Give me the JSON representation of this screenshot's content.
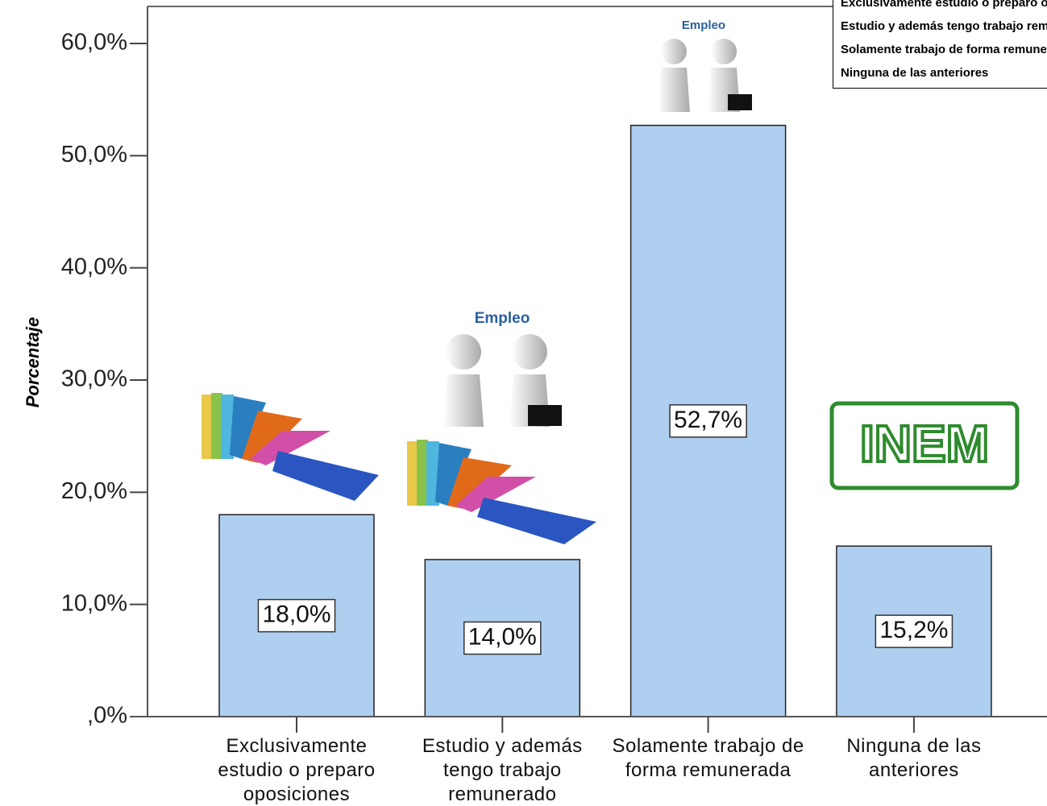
{
  "chart_data": {
    "type": "bar",
    "y_label": "Porcentaje",
    "categories": [
      "Exclusivamente estudio o preparo oposiciones",
      "Estudio y además tengo trabajo remunerado",
      "Solamente trabajo de forma remunerada",
      "Ninguna de las anteriores"
    ],
    "values": [
      18.0,
      14.0,
      52.7,
      15.2
    ],
    "value_labels": [
      "18,0%",
      "14,0%",
      "52,7%",
      "15,2%"
    ],
    "color": "#aecff0",
    "ylim": [
      0,
      63.3
    ],
    "yticks": [
      {
        "value": 0,
        "label": ",0%"
      },
      {
        "value": 10,
        "label": "10,0%"
      },
      {
        "value": 20,
        "label": "20,0%"
      },
      {
        "value": 30,
        "label": "30,0%"
      },
      {
        "value": 40,
        "label": "40,0%"
      },
      {
        "value": 50,
        "label": "50,0%"
      },
      {
        "value": 60,
        "label": "60,0%"
      }
    ],
    "annotations": [
      "Empleo",
      "Empleo",
      "INEM"
    ]
  }
}
